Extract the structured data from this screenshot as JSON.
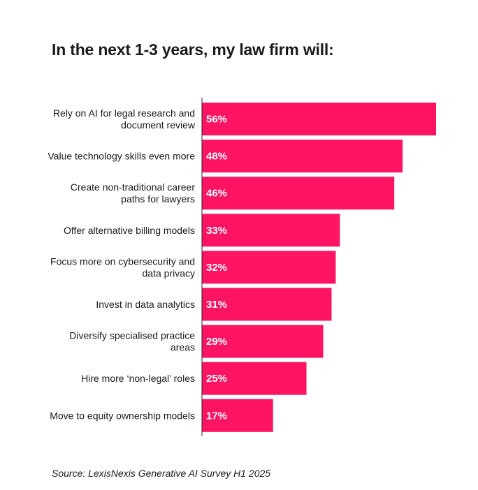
{
  "title": "In the next 1-3 years, my law firm will:",
  "source": "Source: LexisNexis Generative AI Survey H1 2025",
  "chart_data": {
    "type": "bar",
    "orientation": "horizontal",
    "title": "In the next 1-3 years, my law firm will:",
    "categories": [
      [
        "Rely on AI for legal research and",
        "document review"
      ],
      [
        "Value technology skills even more"
      ],
      [
        "Create non-traditional career",
        "paths for lawyers"
      ],
      [
        "Offer alternative billing models"
      ],
      [
        "Focus more on cybersecurity and",
        "data privacy"
      ],
      [
        "Invest in data analytics"
      ],
      [
        "Diversify specialised practice",
        "areas"
      ],
      [
        "Hire more ‘non-legal’ roles"
      ],
      [
        "Move to equity ownership models"
      ]
    ],
    "values": [
      56,
      48,
      46,
      33,
      32,
      31,
      29,
      25,
      17
    ],
    "value_labels": [
      "56%",
      "48%",
      "46%",
      "33%",
      "32%",
      "31%",
      "29%",
      "25%",
      "17%"
    ],
    "bar_color": "#ff1464",
    "xlim": [
      0,
      56
    ],
    "grid": false,
    "legend": "none"
  }
}
